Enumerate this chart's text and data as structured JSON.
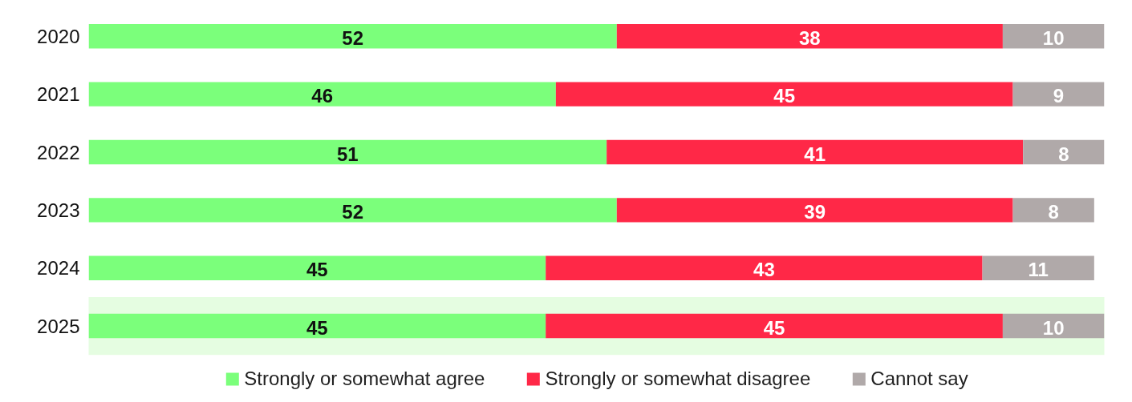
{
  "chart_data": {
    "type": "bar",
    "orientation": "horizontal",
    "stacked": true,
    "data_labels": true,
    "grid": false,
    "legend": "bottom",
    "categories": [
      "2020",
      "2021",
      "2022",
      "2023",
      "2024",
      "2025"
    ],
    "series": [
      {
        "name": "Strongly or somewhat agree",
        "color": "#7bff7b",
        "values": [
          52,
          46,
          51,
          52,
          45,
          45
        ]
      },
      {
        "name": "Strongly or somewhat disagree",
        "color": "#ff2847",
        "values": [
          38,
          45,
          41,
          39,
          43,
          45
        ]
      },
      {
        "name": "Cannot say",
        "color": "#b0a9a9",
        "values": [
          10,
          9,
          8,
          8,
          11,
          10
        ]
      }
    ],
    "bands": [
      {
        "axis": "y",
        "from": "2025",
        "to": "2025",
        "color": "#e5fde1"
      }
    ]
  }
}
